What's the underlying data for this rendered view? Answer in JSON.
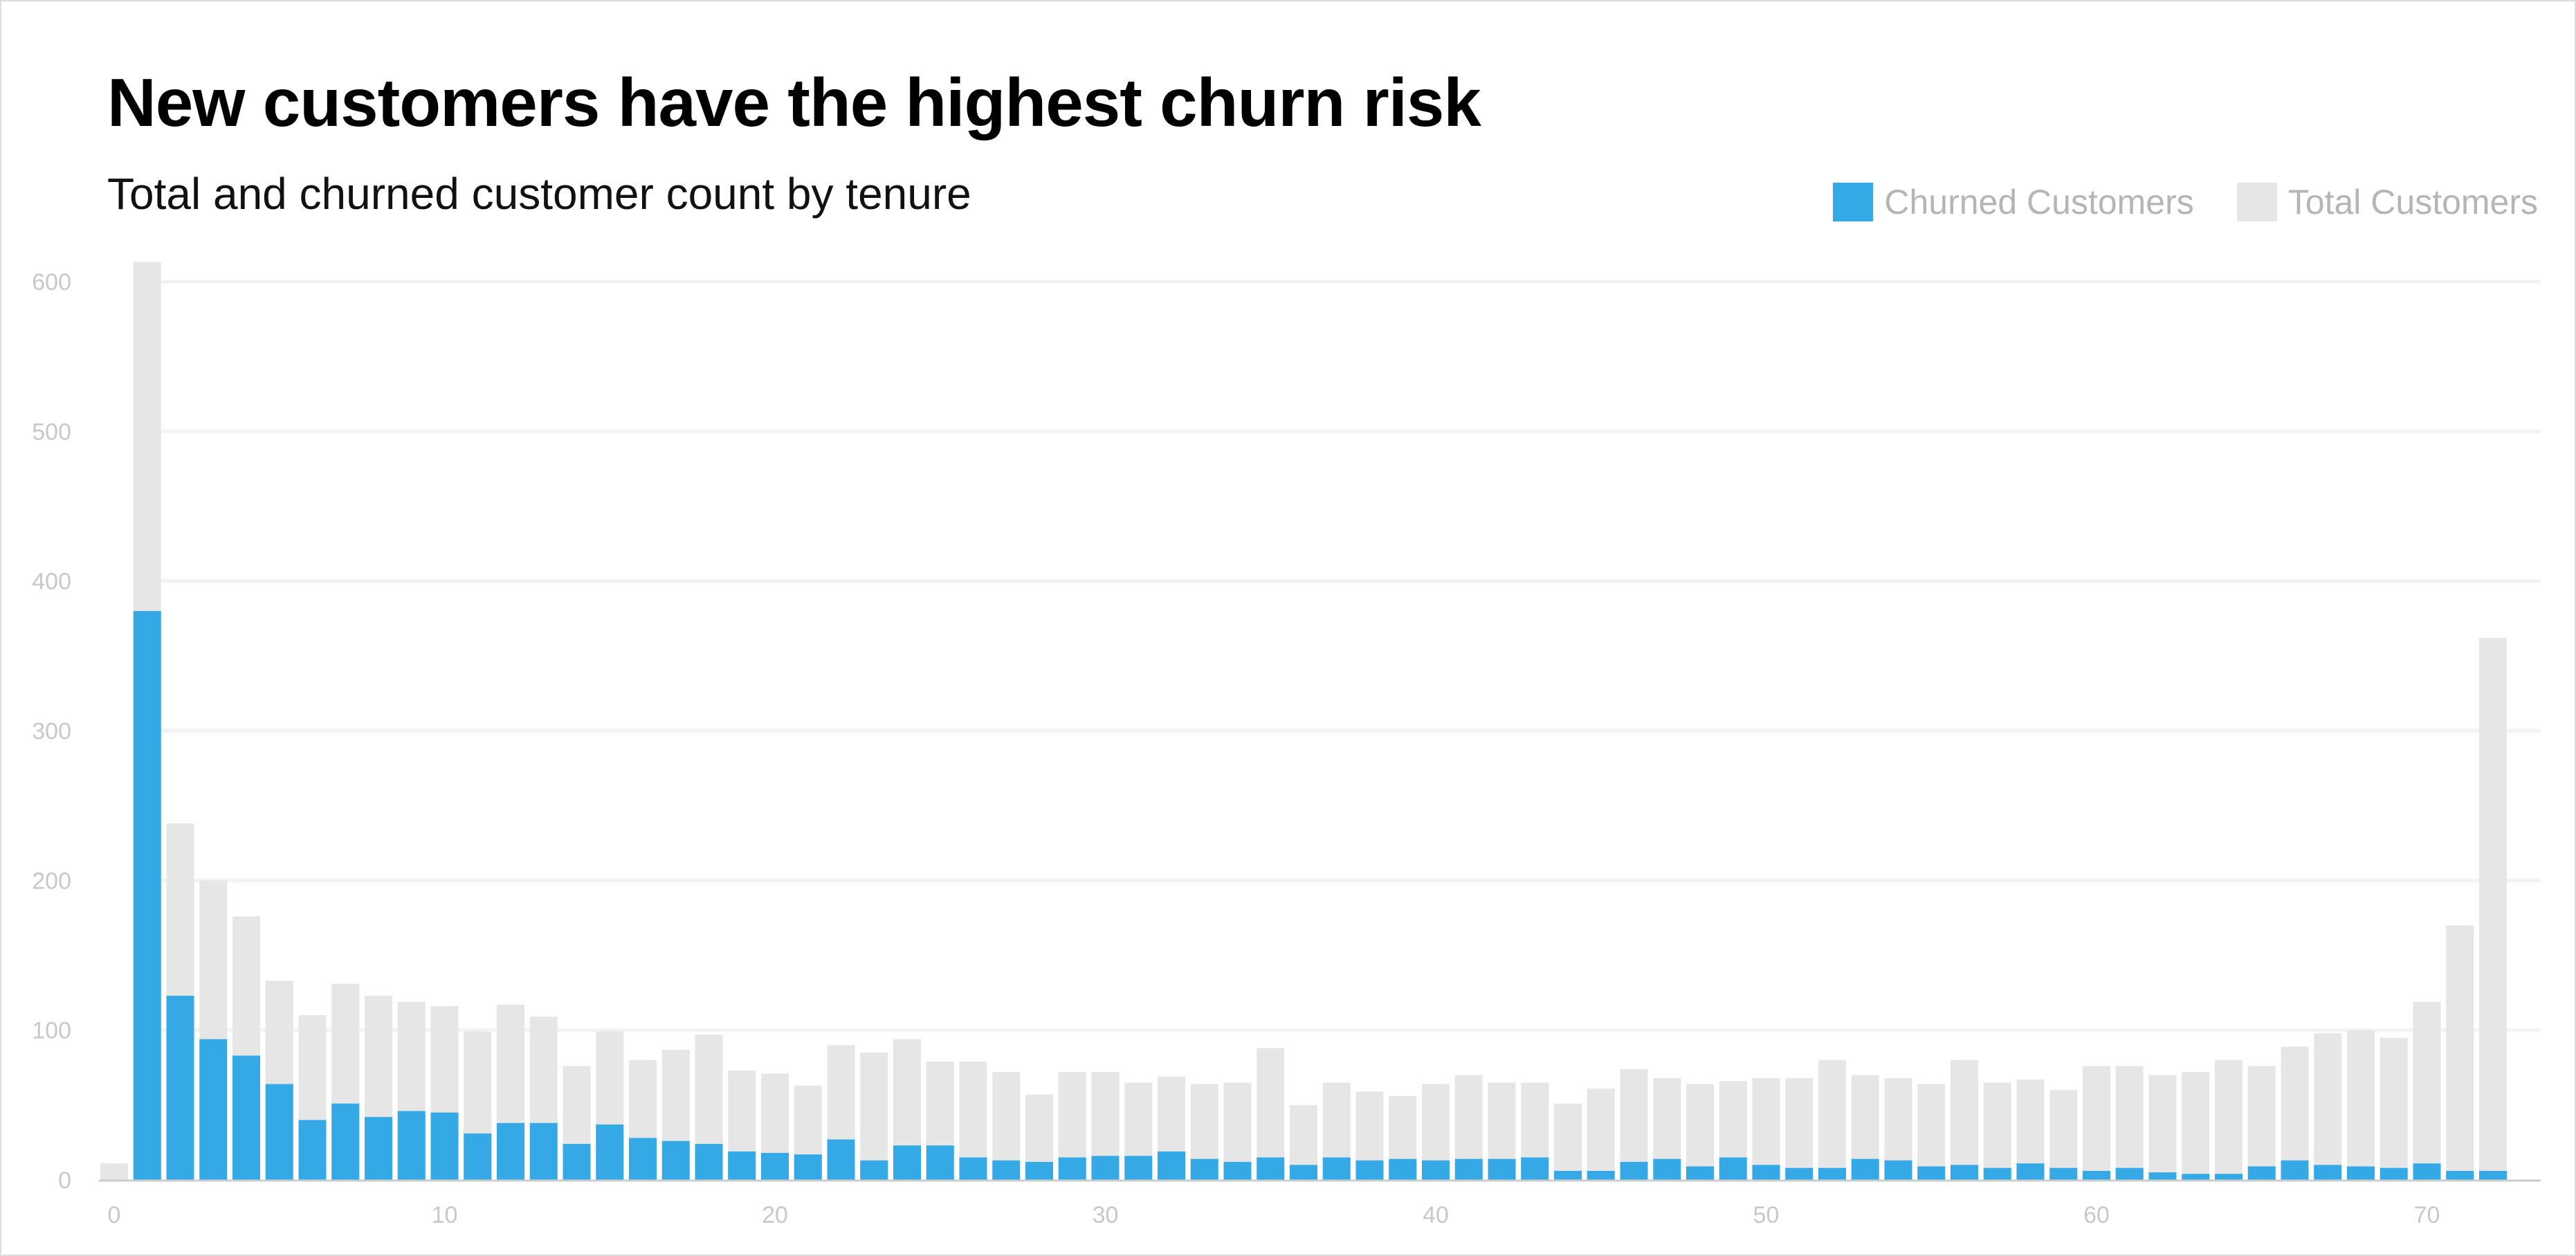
{
  "title": "New customers have the highest churn risk",
  "subtitle": "Total and churned customer count by tenure",
  "colors": {
    "churned": "#35a9e6",
    "total": "#e6e6e6",
    "grid": "#f2f2f2",
    "axis": "#cccccc"
  },
  "chart_data": {
    "type": "bar",
    "stacking": "overlay",
    "title": "New customers have the highest churn risk",
    "subtitle": "Total and churned customer count by tenure",
    "xlabel": "",
    "ylabel": "",
    "xlim": [
      0,
      72
    ],
    "ylim": [
      0,
      620
    ],
    "x_ticks": [
      0,
      10,
      20,
      30,
      40,
      50,
      60,
      70
    ],
    "y_ticks": [
      0,
      100,
      200,
      300,
      400,
      500,
      600
    ],
    "grid": true,
    "legend_position": "top-right",
    "x": [
      0,
      1,
      2,
      3,
      4,
      5,
      6,
      7,
      8,
      9,
      10,
      11,
      12,
      13,
      14,
      15,
      16,
      17,
      18,
      19,
      20,
      21,
      22,
      23,
      24,
      25,
      26,
      27,
      28,
      29,
      30,
      31,
      32,
      33,
      34,
      35,
      36,
      37,
      38,
      39,
      40,
      41,
      42,
      43,
      44,
      45,
      46,
      47,
      48,
      49,
      50,
      51,
      52,
      53,
      54,
      55,
      56,
      57,
      58,
      59,
      60,
      61,
      62,
      63,
      64,
      65,
      66,
      67,
      68,
      69,
      70,
      71,
      72
    ],
    "series": [
      {
        "name": "Churned Customers",
        "color": "#35a9e6",
        "values": [
          0,
          380,
          123,
          94,
          83,
          64,
          40,
          51,
          42,
          46,
          45,
          31,
          38,
          38,
          24,
          37,
          28,
          26,
          24,
          19,
          18,
          17,
          27,
          13,
          23,
          23,
          15,
          13,
          12,
          15,
          16,
          16,
          19,
          14,
          12,
          15,
          10,
          15,
          13,
          14,
          13,
          14,
          14,
          15,
          6,
          6,
          12,
          14,
          9,
          15,
          10,
          8,
          8,
          14,
          13,
          9,
          10,
          8,
          11,
          8,
          6,
          8,
          5,
          4,
          4,
          9,
          13,
          10,
          9,
          8,
          11,
          6,
          6
        ]
      },
      {
        "name": "Total Customers",
        "color": "#e6e6e6",
        "values": [
          11,
          613,
          238,
          200,
          176,
          133,
          110,
          131,
          123,
          119,
          116,
          99,
          117,
          109,
          76,
          99,
          80,
          87,
          97,
          73,
          71,
          63,
          90,
          85,
          94,
          79,
          79,
          72,
          57,
          72,
          72,
          65,
          69,
          64,
          65,
          88,
          50,
          65,
          59,
          56,
          64,
          70,
          65,
          65,
          51,
          61,
          74,
          68,
          64,
          66,
          68,
          68,
          80,
          70,
          68,
          64,
          80,
          65,
          67,
          60,
          76,
          76,
          70,
          72,
          80,
          76,
          89,
          98,
          100,
          95,
          119,
          170,
          362
        ]
      }
    ]
  }
}
